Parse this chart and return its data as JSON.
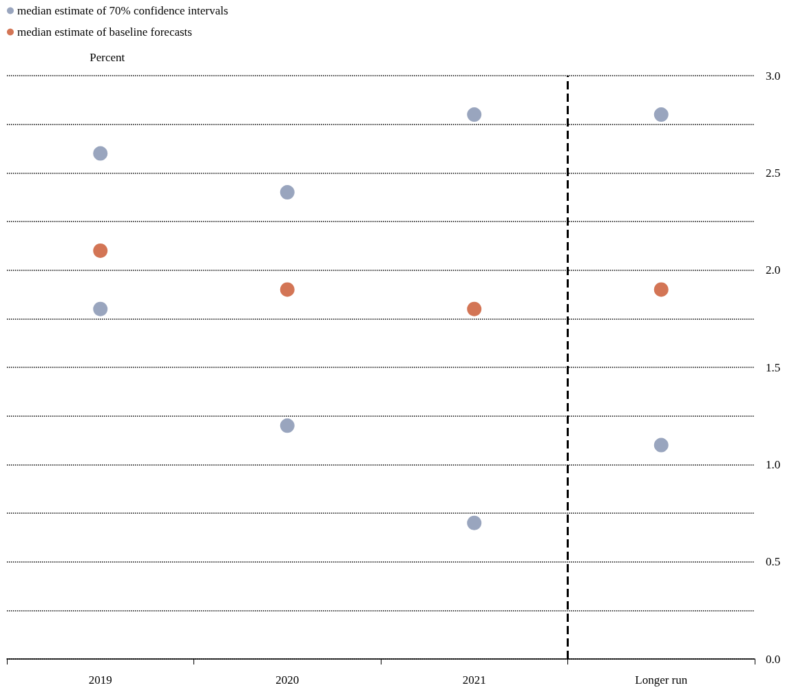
{
  "chart_data": {
    "type": "scatter",
    "categories": [
      "2019",
      "2020",
      "2021",
      "Longer run"
    ],
    "series": [
      {
        "name": "median estimate of 70% confidence intervals",
        "color": "#7f8fae",
        "values": [
          2.6,
          2.4,
          2.8,
          2.8
        ]
      },
      {
        "color": "#7f8fae",
        "values": [
          1.8,
          1.2,
          0.7,
          1.1
        ]
      },
      {
        "name": "median estimate of baseline forecasts",
        "color": "#c8532a",
        "values": [
          2.1,
          1.9,
          1.8,
          1.9
        ]
      }
    ],
    "ylabel": "Percent",
    "ylim": [
      0,
      3
    ],
    "yticks": [
      {
        "value": 0,
        "label": "0.0"
      },
      {
        "value": 0.25,
        "label": null
      },
      {
        "value": 0.5,
        "label": "0.5"
      },
      {
        "value": 0.75,
        "label": null
      },
      {
        "value": 1,
        "label": "1.0"
      },
      {
        "value": 1.25,
        "label": null
      },
      {
        "value": 1.5,
        "label": "1.5"
      },
      {
        "value": 1.75,
        "label": null
      },
      {
        "value": 2,
        "label": "2.0"
      },
      {
        "value": 2.25,
        "label": null
      },
      {
        "value": 2.5,
        "label": "2.5"
      },
      {
        "value": 2.75,
        "label": null
      },
      {
        "value": 3,
        "label": "3.0"
      }
    ],
    "ref_lines": [
      {
        "axis": "x",
        "value": "Longer run",
        "line_style": "dashed",
        "color": "#000000"
      }
    ],
    "grid": "y",
    "legend": "top left",
    "marker": "circle"
  }
}
